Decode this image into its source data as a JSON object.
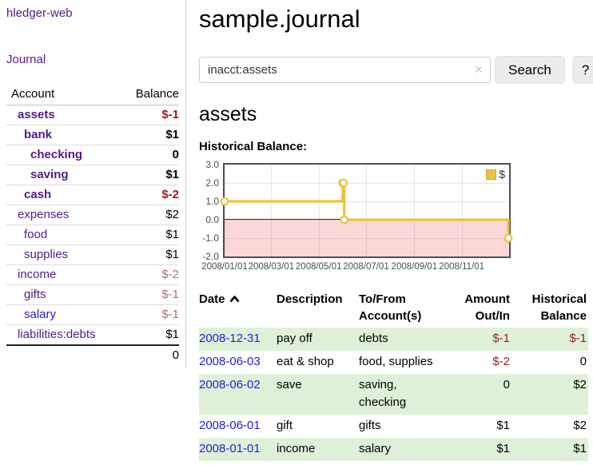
{
  "app": {
    "brand": "hledger-web",
    "nav_journal": "Journal"
  },
  "sidebar": {
    "header": {
      "account": "Account",
      "balance": "Balance"
    },
    "accounts": [
      {
        "name": "assets",
        "level": 1,
        "balance": "$-1",
        "strong": true,
        "bal_style": "negStrong",
        "name_style": "purple"
      },
      {
        "name": "bank",
        "level": 2,
        "balance": "$1",
        "strong": true,
        "bal_style": "plain",
        "name_style": "purple"
      },
      {
        "name": "checking",
        "level": 3,
        "balance": "0",
        "strong": true,
        "bal_style": "plain",
        "name_style": "purple"
      },
      {
        "name": "saving",
        "level": 3,
        "balance": "$1",
        "strong": true,
        "bal_style": "plain",
        "name_style": "purple"
      },
      {
        "name": "cash",
        "level": 2,
        "balance": "$-2",
        "strong": true,
        "bal_style": "negStrong",
        "name_style": "purple"
      },
      {
        "name": "expenses",
        "level": 1,
        "balance": "$2",
        "strong": false,
        "bal_style": "plain",
        "name_style": "purple"
      },
      {
        "name": "food",
        "level": 2,
        "balance": "$1",
        "strong": false,
        "bal_style": "plain",
        "name_style": "purple"
      },
      {
        "name": "supplies",
        "level": 2,
        "balance": "$1",
        "strong": false,
        "bal_style": "plain",
        "name_style": "purple"
      },
      {
        "name": "income",
        "level": 1,
        "balance": "$-2",
        "strong": false,
        "bal_style": "negMuted",
        "name_style": "purple"
      },
      {
        "name": "gifts",
        "level": 2,
        "balance": "$-1",
        "strong": false,
        "bal_style": "negMuted",
        "name_style": "purple"
      },
      {
        "name": "salary",
        "level": 2,
        "balance": "$-1",
        "strong": false,
        "bal_style": "negMuted",
        "name_style": "blue"
      },
      {
        "name": "liabilities:debts",
        "level": 1,
        "balance": "$1",
        "strong": false,
        "bal_style": "plain",
        "name_style": "purple"
      }
    ],
    "total": "0"
  },
  "main": {
    "title": "sample.journal",
    "search": {
      "value": "inacct:assets",
      "clear_icon": "✕",
      "button": "Search",
      "help": "?"
    },
    "account_heading": "assets",
    "chart_label": "Historical Balance:"
  },
  "icons": {
    "sort_ascending": "chevron-up",
    "clear_search": "✕"
  },
  "chart_data": {
    "type": "line",
    "step": true,
    "title": "Historical Balance",
    "series": [
      {
        "name": "$",
        "color": "#edc240",
        "marker_fill": "#ffffff",
        "points": [
          {
            "x": "2008-01-01",
            "y": 1
          },
          {
            "x": "2008-06-01",
            "y": 2
          },
          {
            "x": "2008-06-02",
            "y": 2
          },
          {
            "x": "2008-06-03",
            "y": 0
          },
          {
            "x": "2008-12-31",
            "y": -1
          }
        ]
      }
    ],
    "xlim": [
      "2008-01-01",
      "2009-01-01"
    ],
    "ylim": [
      -2,
      3
    ],
    "x_ticks": [
      {
        "label": "2008/01/01",
        "date": "2008-01-01"
      },
      {
        "label": "2008/03/01",
        "date": "2008-03-01"
      },
      {
        "label": "2008/05/01",
        "date": "2008-05-01"
      },
      {
        "label": "2008/07/01",
        "date": "2008-07-01"
      },
      {
        "label": "2008/09/01",
        "date": "2008-09-01"
      },
      {
        "label": "2008/11/01",
        "date": "2008-11-01"
      }
    ],
    "y_ticks": [
      {
        "label": "3.0",
        "value": 3
      },
      {
        "label": "2.0",
        "value": 2
      },
      {
        "label": "1.0",
        "value": 1
      },
      {
        "label": "0.0",
        "value": 0
      },
      {
        "label": "-1.0",
        "value": -1
      },
      {
        "label": "-2.0",
        "value": -2
      }
    ],
    "grid": true,
    "zero_line_color": "#8c0b0b",
    "negative_region_color": "#fbd8d8",
    "legend": {
      "label": "$",
      "position": "top-right",
      "swatch_color": "#edc240"
    }
  },
  "register": {
    "headers": [
      {
        "key": "date",
        "label": "Date",
        "sortable": true,
        "sorted_asc": true,
        "numeric": false
      },
      {
        "key": "description",
        "label": "Description",
        "sortable": false,
        "sorted_asc": false,
        "numeric": false
      },
      {
        "key": "accounts",
        "label": "To/From Account(s)",
        "sortable": false,
        "sorted_asc": false,
        "numeric": false
      },
      {
        "key": "amount",
        "label": "Amount Out/In",
        "sortable": false,
        "sorted_asc": false,
        "numeric": true
      },
      {
        "key": "balance",
        "label": "Historical Balance",
        "sortable": false,
        "sorted_asc": false,
        "numeric": true
      }
    ],
    "rows": [
      {
        "date": "2008-12-31",
        "description": "pay off",
        "accounts": "debts",
        "amount": "$-1",
        "amount_neg": true,
        "balance": "$-1",
        "balance_neg": true
      },
      {
        "date": "2008-06-03",
        "description": "eat & shop",
        "accounts": "food, supplies",
        "amount": "$-2",
        "amount_neg": true,
        "balance": "0",
        "balance_neg": false
      },
      {
        "date": "2008-06-02",
        "description": "save",
        "accounts": "saving, checking",
        "amount": "0",
        "amount_neg": false,
        "balance": "$2",
        "balance_neg": false
      },
      {
        "date": "2008-06-01",
        "description": "gift",
        "accounts": "gifts",
        "amount": "$1",
        "amount_neg": false,
        "balance": "$2",
        "balance_neg": false
      },
      {
        "date": "2008-01-01",
        "description": "income",
        "accounts": "salary",
        "amount": "$1",
        "amount_neg": false,
        "balance": "$1",
        "balance_neg": false
      }
    ]
  }
}
